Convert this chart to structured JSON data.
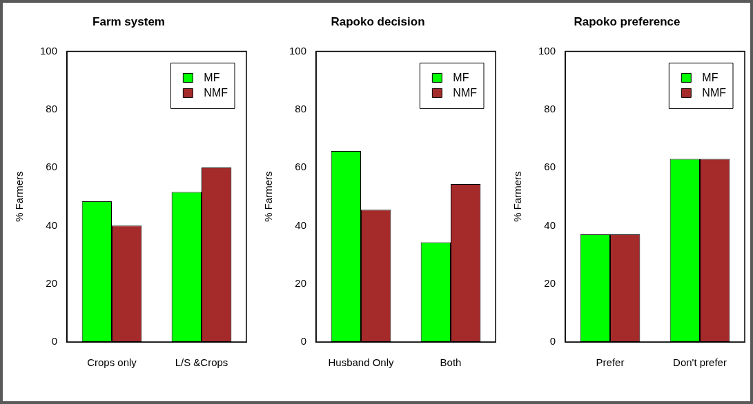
{
  "chart_data": [
    {
      "type": "bar",
      "title": "Farm system",
      "ylabel": "% Farmers",
      "categories": [
        "Crops only",
        "L/S &Crops"
      ],
      "series": [
        {
          "name": "MF",
          "color": "#00ff00",
          "values": [
            48.4,
            51.6
          ]
        },
        {
          "name": "NMF",
          "color": "#a52a2a",
          "values": [
            40,
            60
          ]
        }
      ],
      "ylim": [
        0,
        100
      ],
      "yticks": [
        0,
        20,
        40,
        60,
        80,
        100
      ],
      "legend": "top right"
    },
    {
      "type": "bar",
      "title": "Rapoko decision",
      "ylabel": "% Farmers",
      "categories": [
        "Husband Only",
        "Both"
      ],
      "series": [
        {
          "name": "MF",
          "color": "#00ff00",
          "values": [
            65.7,
            34.3
          ]
        },
        {
          "name": "NMF",
          "color": "#a52a2a",
          "values": [
            45.5,
            54.3
          ]
        }
      ],
      "ylim": [
        0,
        100
      ],
      "yticks": [
        0,
        20,
        40,
        60,
        80,
        100
      ],
      "legend": "top right"
    },
    {
      "type": "bar",
      "title": "Rapoko preference",
      "ylabel": "% Farmers",
      "categories": [
        "Prefer",
        "Don't prefer"
      ],
      "series": [
        {
          "name": "MF",
          "color": "#00ff00",
          "values": [
            37,
            63
          ]
        },
        {
          "name": "NMF",
          "color": "#a52a2a",
          "values": [
            37,
            63
          ]
        }
      ],
      "ylim": [
        0,
        100
      ],
      "yticks": [
        0,
        20,
        40,
        60,
        80,
        100
      ],
      "legend": "top right"
    }
  ]
}
